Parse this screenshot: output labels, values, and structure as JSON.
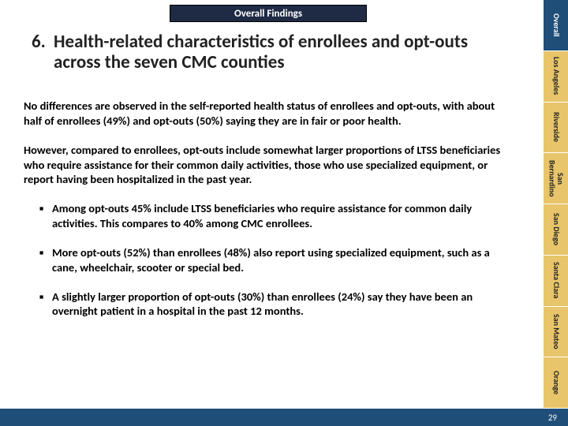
{
  "colors": {
    "tab_dark": "#1f2a44",
    "side_active": "#1f4e79",
    "side_inactive": "#e8c56a",
    "footer": "#1f4e79",
    "text": "#000000",
    "white": "#ffffff"
  },
  "top_tab": {
    "label": "Overall Findings"
  },
  "headline": {
    "number": "6.",
    "text": "Health-related characteristics of enrollees and opt-outs across the seven CMC counties"
  },
  "paragraphs": [
    "No differences are observed in the self-reported health status of enrollees and opt-outs, with about half of enrollees (49%) and opt-outs (50%) saying they are in fair or poor health.",
    "However, compared to enrollees, opt-outs include somewhat larger proportions of LTSS beneficiaries who require assistance for their common daily activities, those who use specialized equipment, or report having been hospitalized in the past year."
  ],
  "bullets": [
    "Among opt-outs 45% include LTSS beneficiaries who require assistance for common daily activities. This compares to 40% among CMC enrollees.",
    "More opt-outs (52%) than enrollees (48%) also report using specialized equipment, such as a cane, wheelchair, scooter or special bed.",
    "A slightly larger proportion of opt-outs (30%) than enrollees (24%) say they have been an overnight patient in a hospital in the past 12 months."
  ],
  "side_tabs": [
    {
      "label": "Overall",
      "active": true
    },
    {
      "label": "Los Angeles",
      "active": false
    },
    {
      "label": "Riverside",
      "active": false
    },
    {
      "label": "San Bernardino",
      "active": false
    },
    {
      "label": "San Diego",
      "active": false
    },
    {
      "label": "Santa Clara",
      "active": false
    },
    {
      "label": "San Mateo",
      "active": false
    },
    {
      "label": "Orange",
      "active": false
    }
  ],
  "footer": {
    "page_number": "29"
  },
  "typography": {
    "headline_fontsize": 23,
    "body_fontsize": 14.5,
    "side_tab_fontsize": 10,
    "footer_fontsize": 11,
    "top_tab_fontsize": 13
  }
}
